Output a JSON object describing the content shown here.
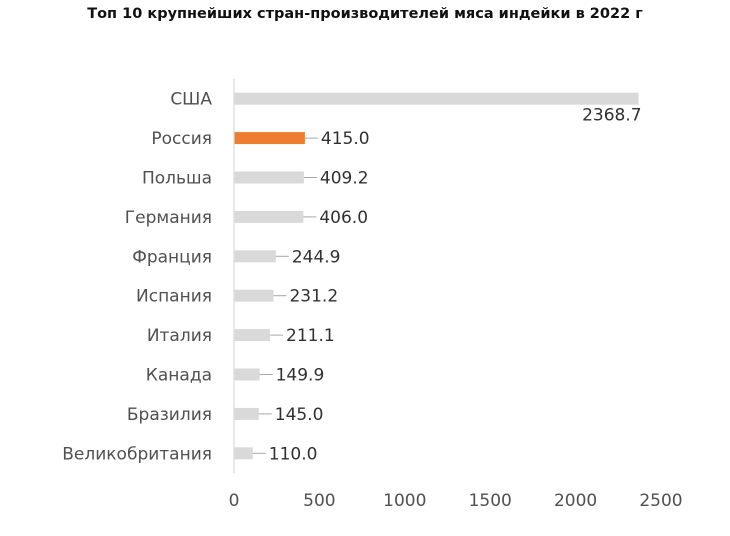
{
  "chart_data": {
    "type": "bar",
    "orientation": "horizontal",
    "title": "Топ 10 крупнейших стран-производителей мяса индейки в 2022 г",
    "xlabel": "",
    "ylabel": "",
    "categories": [
      "США",
      "Россия",
      "Польша",
      "Германия",
      "Франция",
      "Испания",
      "Италия",
      "Канада",
      "Бразилия",
      "Великобритания"
    ],
    "values": [
      2368.7,
      415.0,
      409.2,
      406.0,
      244.9,
      231.2,
      211.1,
      149.9,
      145.0,
      110.0
    ],
    "value_labels": [
      "2368.7",
      "415.0",
      "409.2",
      "406.0",
      "244.9",
      "231.2",
      "211.1",
      "149.9",
      "145.0",
      "110.0"
    ],
    "xlim": [
      0,
      2500
    ],
    "xticks": [
      "0",
      "500",
      "1000",
      "1500",
      "2000",
      "2500"
    ],
    "grid": false,
    "highlight_category": "Россия",
    "colors": {
      "bar": "#d9d9d9",
      "highlight": "#ed7d31",
      "axis": "#d9d9d9",
      "leader": "#a6a6a6"
    }
  }
}
